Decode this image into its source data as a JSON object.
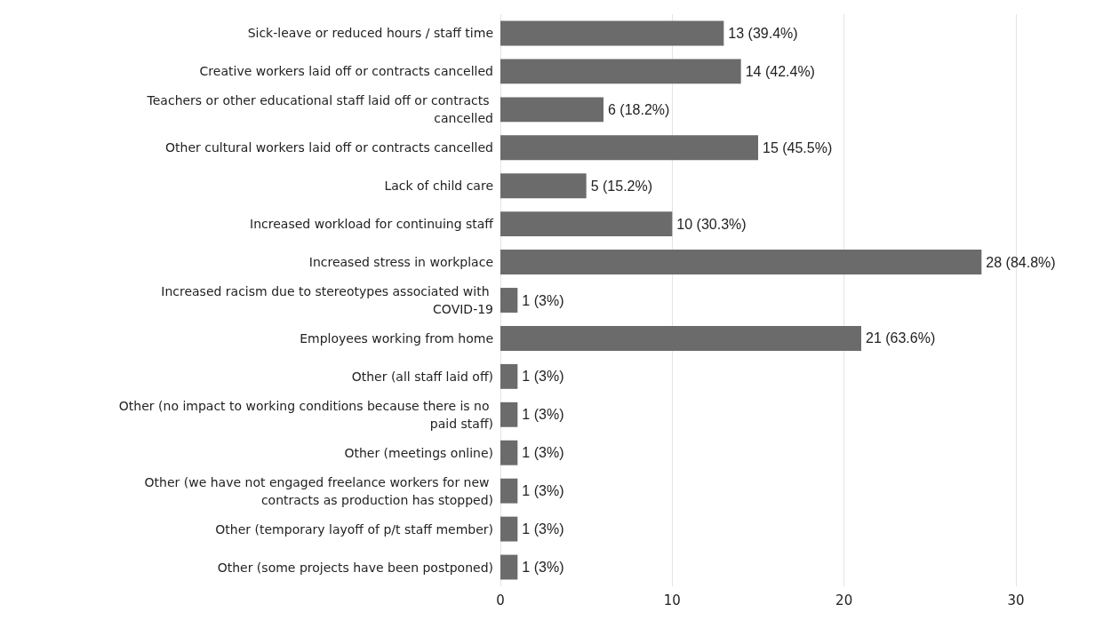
{
  "chart_data": {
    "type": "bar",
    "orientation": "horizontal",
    "categories": [
      "Sick-leave or reduced hours / staff time",
      "Creative workers laid off or contracts cancelled",
      "Teachers or other educational staff laid off or contracts cancelled",
      "Other cultural workers laid off or contracts cancelled",
      "Lack of child care",
      "Increased workload for continuing staff",
      "Increased stress in workplace",
      "Increased racism due to stereotypes associated with COVID-19",
      "Employees working from home",
      "Other (all staff laid off)",
      "Other (no impact to working conditions because there is no paid staff)",
      "Other (meetings online)",
      "Other (we have not engaged freelance workers for new contracts as production has stopped)",
      "Other (temporary layoff of p/t staff member)",
      "Other (some projects have been postponed)"
    ],
    "values": [
      13,
      14,
      6,
      15,
      5,
      10,
      28,
      1,
      21,
      1,
      1,
      1,
      1,
      1,
      1
    ],
    "value_labels": [
      "13 (39.4%)",
      "14 (42.4%)",
      "6 (18.2%)",
      "15 (45.5%)",
      "5 (15.2%)",
      "10 (30.3%)",
      "28 (84.8%)",
      "1 (3%)",
      "21 (63.6%)",
      "1 (3%)",
      "1 (3%)",
      "1 (3%)",
      "1 (3%)",
      "1 (3%)",
      "1 (3%)"
    ],
    "color": "#6b6b6b",
    "xlim": [
      0,
      30
    ],
    "xticks": [
      0,
      10,
      20,
      30
    ],
    "grid": "x"
  }
}
